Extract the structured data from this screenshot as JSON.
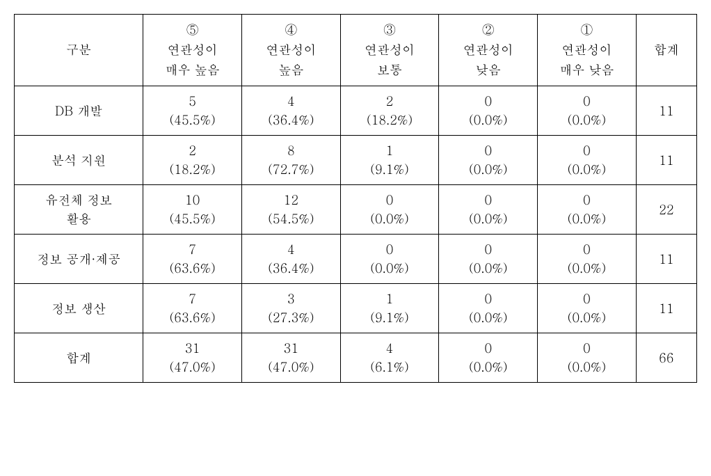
{
  "table": {
    "type": "table",
    "background_color": "#ffffff",
    "border_color": "#000000",
    "font_family": "Batang",
    "header_fontsize": 18,
    "cell_fontsize": 18,
    "columns": {
      "category_header": "구분",
      "total_header": "합계",
      "rating_headers": [
        {
          "num": "⑤",
          "line1": "연관성이",
          "line2": "매우 높음"
        },
        {
          "num": "④",
          "line1": "연관성이",
          "line2": "높음"
        },
        {
          "num": "③",
          "line1": "연관성이",
          "line2": "보통"
        },
        {
          "num": "②",
          "line1": "연관성이",
          "line2": "낮음"
        },
        {
          "num": "①",
          "line1": "연관성이",
          "line2": "매우 낮음"
        }
      ]
    },
    "rows": [
      {
        "category": "DB 개발",
        "cells": [
          {
            "value": "5",
            "percent": "(45.5%)"
          },
          {
            "value": "4",
            "percent": "(36.4%)"
          },
          {
            "value": "2",
            "percent": "(18.2%)"
          },
          {
            "value": "0",
            "percent": "(0.0%)"
          },
          {
            "value": "0",
            "percent": "(0.0%)"
          }
        ],
        "total": "11"
      },
      {
        "category": "분석 지원",
        "cells": [
          {
            "value": "2",
            "percent": "(18.2%)"
          },
          {
            "value": "8",
            "percent": "(72.7%)"
          },
          {
            "value": "1",
            "percent": "(9.1%)"
          },
          {
            "value": "0",
            "percent": "(0.0%)"
          },
          {
            "value": "0",
            "percent": "(0.0%)"
          }
        ],
        "total": "11"
      },
      {
        "category_line1": "유전체 정보",
        "category_line2": "활용",
        "cells": [
          {
            "value": "10",
            "percent": "(45.5%)"
          },
          {
            "value": "12",
            "percent": "(54.5%)"
          },
          {
            "value": "0",
            "percent": "(0.0%)"
          },
          {
            "value": "0",
            "percent": "(0.0%)"
          },
          {
            "value": "0",
            "percent": "(0.0%)"
          }
        ],
        "total": "22"
      },
      {
        "category": "정보 공개·제공",
        "cells": [
          {
            "value": "7",
            "percent": "(63.6%)"
          },
          {
            "value": "4",
            "percent": "(36.4%)"
          },
          {
            "value": "0",
            "percent": "(0.0%)"
          },
          {
            "value": "0",
            "percent": "(0.0%)"
          },
          {
            "value": "0",
            "percent": "(0.0%)"
          }
        ],
        "total": "11"
      },
      {
        "category": "정보 생산",
        "cells": [
          {
            "value": "7",
            "percent": "(63.6%)"
          },
          {
            "value": "3",
            "percent": "(27.3%)"
          },
          {
            "value": "1",
            "percent": "(9.1%)"
          },
          {
            "value": "0",
            "percent": "(0.0%)"
          },
          {
            "value": "0",
            "percent": "(0.0%)"
          }
        ],
        "total": "11"
      },
      {
        "category": "합계",
        "cells": [
          {
            "value": "31",
            "percent": "(47.0%)"
          },
          {
            "value": "31",
            "percent": "(47.0%)"
          },
          {
            "value": "4",
            "percent": "(6.1%)"
          },
          {
            "value": "0",
            "percent": "(0.0%)"
          },
          {
            "value": "0",
            "percent": "(0.0%)"
          }
        ],
        "total": "66"
      }
    ]
  }
}
